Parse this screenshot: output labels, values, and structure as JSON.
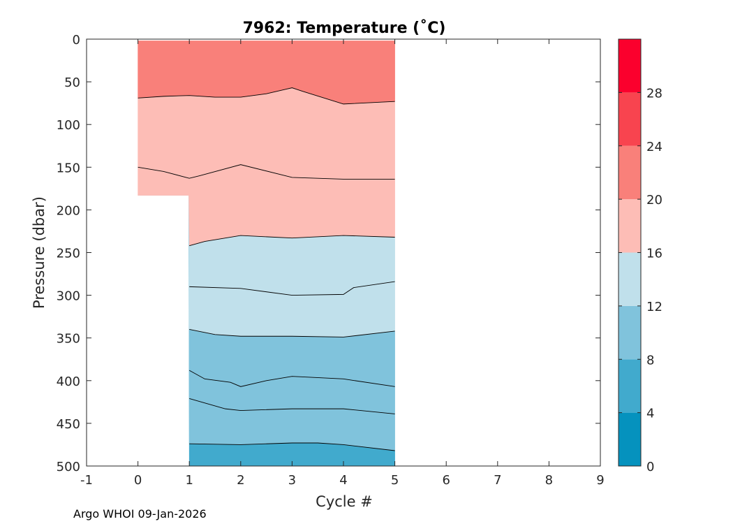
{
  "chart_data": {
    "type": "filled-contour",
    "title": "7962:  Temperature (˚C)",
    "xlabel": "Cycle #",
    "ylabel": "Pressure (dbar)",
    "xlim": [
      -1,
      9
    ],
    "ylim": [
      500,
      0
    ],
    "y_reversed": true,
    "x_ticks": [
      "-1",
      "0",
      "1",
      "2",
      "3",
      "4",
      "5",
      "6",
      "7",
      "8",
      "9"
    ],
    "y_ticks": [
      "0",
      "50",
      "100",
      "150",
      "200",
      "250",
      "300",
      "350",
      "400",
      "450",
      "500"
    ],
    "data_extent": {
      "x_range": [
        0,
        5
      ],
      "max_pressure": [
        {
          "x": 0,
          "p": 183
        },
        {
          "x": 1,
          "p": 500
        },
        {
          "x": 5,
          "p": 500
        }
      ],
      "top_pressure": 2
    },
    "contour_levels": [
      {
        "level": 8,
        "line": [
          [
            1,
            474
          ],
          [
            2,
            475
          ],
          [
            3,
            473
          ],
          [
            3.5,
            473
          ],
          [
            4,
            475
          ],
          [
            5,
            482
          ]
        ]
      },
      {
        "level": 10,
        "line": [
          [
            1,
            421
          ],
          [
            1.7,
            433
          ],
          [
            2,
            435
          ],
          [
            3,
            433
          ],
          [
            4,
            433
          ],
          [
            5,
            439
          ]
        ]
      },
      {
        "level": 11,
        "line": [
          [
            1,
            388
          ],
          [
            1.3,
            398
          ],
          [
            1.8,
            402
          ],
          [
            2,
            407
          ],
          [
            2.5,
            400
          ],
          [
            3,
            395
          ],
          [
            4,
            398
          ],
          [
            5,
            407
          ]
        ]
      },
      {
        "level": 12,
        "line": [
          [
            1,
            340
          ],
          [
            1.5,
            346
          ],
          [
            2,
            348
          ],
          [
            3,
            348
          ],
          [
            4,
            349
          ],
          [
            5,
            342
          ]
        ]
      },
      {
        "level": 14,
        "line": [
          [
            1,
            290
          ],
          [
            2,
            292
          ],
          [
            3,
            300
          ],
          [
            4,
            299
          ],
          [
            4.2,
            291
          ],
          [
            5,
            284
          ]
        ]
      },
      {
        "level": 16,
        "line": [
          [
            1,
            242
          ],
          [
            1.3,
            237
          ],
          [
            2,
            230
          ],
          [
            3,
            233
          ],
          [
            4,
            230
          ],
          [
            5,
            232
          ]
        ]
      },
      {
        "level": 18,
        "line": [
          [
            0,
            150
          ],
          [
            0.5,
            155
          ],
          [
            1,
            163
          ],
          [
            1.2,
            160
          ],
          [
            2,
            147
          ],
          [
            3,
            162
          ],
          [
            4,
            164
          ],
          [
            5,
            164
          ]
        ]
      },
      {
        "level": 20,
        "line": [
          [
            0,
            69
          ],
          [
            0.5,
            67
          ],
          [
            1,
            66
          ],
          [
            1.5,
            68
          ],
          [
            2,
            68
          ],
          [
            2.5,
            64
          ],
          [
            3,
            57
          ],
          [
            3.2,
            61
          ],
          [
            4,
            76
          ],
          [
            5,
            73
          ]
        ]
      }
    ],
    "colorbar": {
      "ticks": [
        "0",
        "4",
        "8",
        "12",
        "16",
        "20",
        "24",
        "28"
      ],
      "range": [
        0,
        32
      ],
      "bands": [
        {
          "from": 0,
          "to": 4,
          "color": "#0592be"
        },
        {
          "from": 4,
          "to": 8,
          "color": "#41aacd"
        },
        {
          "from": 8,
          "to": 12,
          "color": "#80c3dc"
        },
        {
          "from": 12,
          "to": 16,
          "color": "#c0e0eb"
        },
        {
          "from": 16,
          "to": 20,
          "color": "#fdbdb6"
        },
        {
          "from": 20,
          "to": 24,
          "color": "#f9807a"
        },
        {
          "from": 24,
          "to": 28,
          "color": "#f8444f"
        },
        {
          "from": 28,
          "to": 32,
          "color": "#fb002d"
        }
      ]
    }
  },
  "footer_text": "Argo WHOI 09-Jan-2026"
}
